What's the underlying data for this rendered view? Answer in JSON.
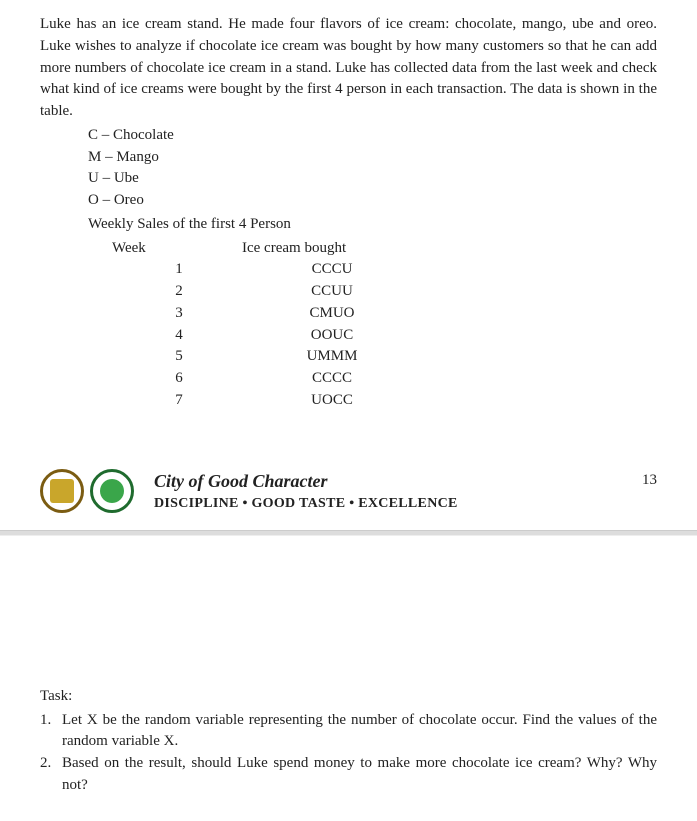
{
  "intro": "Luke has an ice cream stand.  He made four flavors of ice cream:  chocolate, mango, ube and oreo. Luke wishes to analyze if chocolate ice cream was bought by how many customers so that he can add more numbers of chocolate ice cream in a stand. Luke has collected data from the last week and check what kind of ice creams were bought by the first 4 person in each transaction.  The data is shown in the table.",
  "legend": [
    "C – Chocolate",
    "M – Mango",
    "U – Ube",
    "O – Oreo"
  ],
  "subtitle": "Weekly Sales of the first 4 Person",
  "table": {
    "headers": {
      "week": "Week",
      "ice": "Ice cream bought"
    },
    "rows": [
      {
        "week": "1",
        "ice": "CCCU"
      },
      {
        "week": "2",
        "ice": "CCUU"
      },
      {
        "week": "3",
        "ice": "CMUO"
      },
      {
        "week": "4",
        "ice": "OOUC"
      },
      {
        "week": "5",
        "ice": "UMMM"
      },
      {
        "week": "6",
        "ice": "CCCC"
      },
      {
        "week": "7",
        "ice": "UOCC"
      }
    ]
  },
  "footer": {
    "seal1": {
      "border": "#7b5c12",
      "inner": "#c9a62b"
    },
    "seal2": {
      "border": "#1f6b2e",
      "inner": "#3aa64a"
    },
    "motto_script": "City of Good Character",
    "motto_sub": "DISCIPLINE • GOOD TASTE • EXCELLENCE",
    "page_num": "13"
  },
  "task": {
    "title": "Task:",
    "items": [
      {
        "num": "1.",
        "text": "Let X be the random variable representing the number of chocolate occur.  Find the values of the random variable X."
      },
      {
        "num": "2.",
        "text": "Based on the result, should Luke spend money to make more chocolate ice cream?  Why?  Why not?"
      }
    ]
  }
}
